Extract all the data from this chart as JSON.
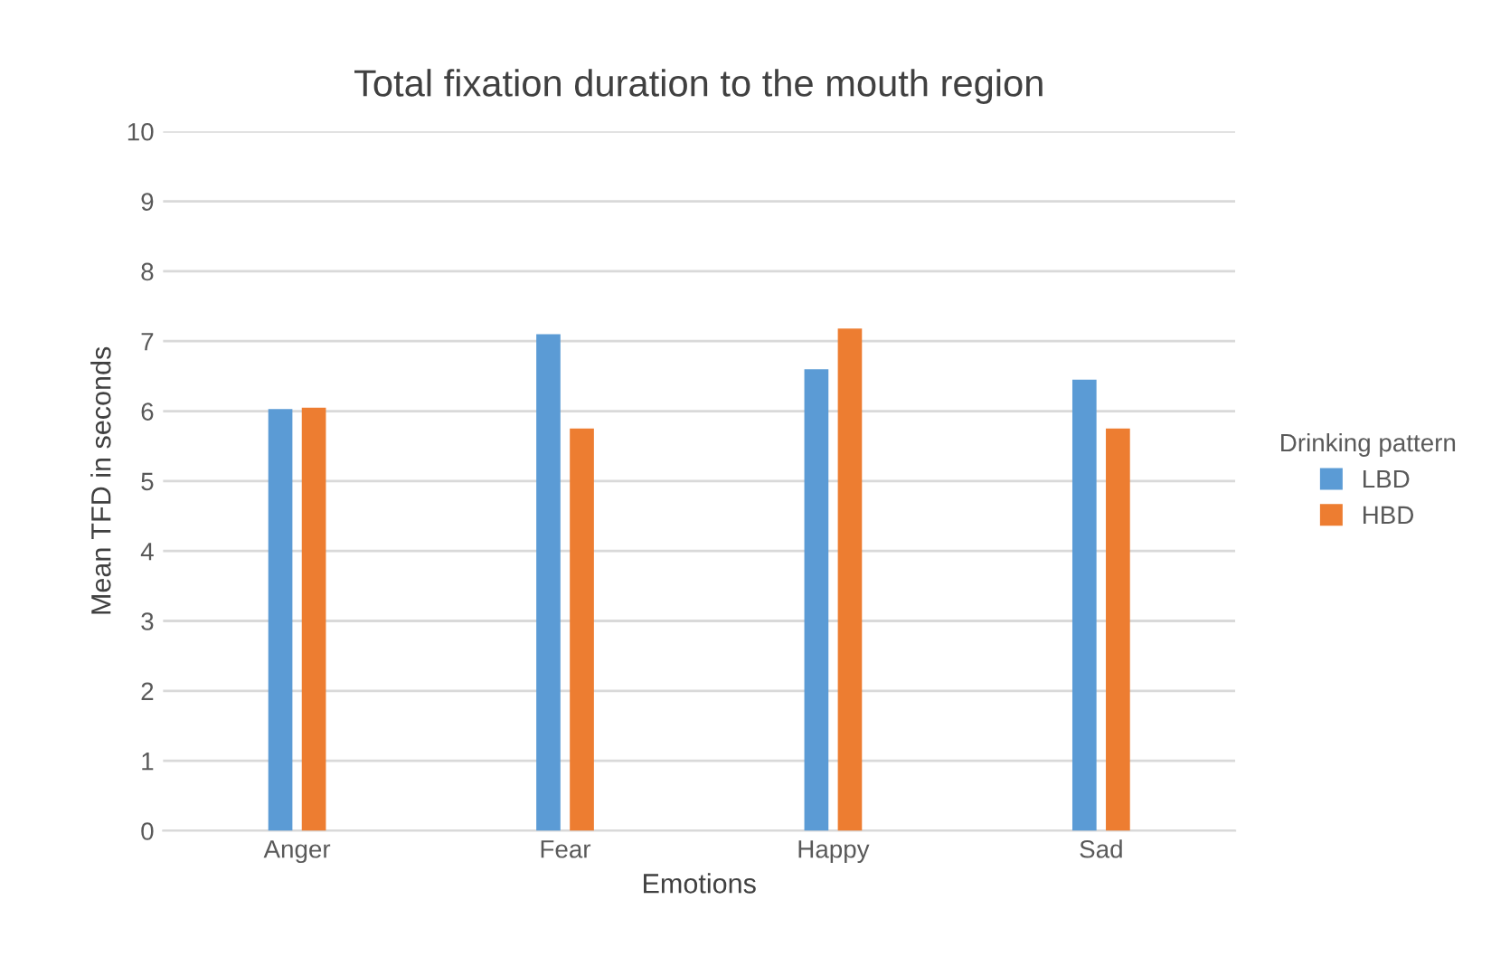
{
  "chart_data": {
    "type": "bar",
    "title": "Total fixation duration to the mouth region",
    "xlabel": "Emotions",
    "ylabel": "Mean TFD in seconds",
    "legend_title": "Drinking pattern",
    "categories": [
      "Anger",
      "Fear",
      "Happy",
      "Sad"
    ],
    "series": [
      {
        "name": "LBD",
        "color": "#5b9bd5",
        "values": [
          6.03,
          7.1,
          6.6,
          6.45
        ]
      },
      {
        "name": "HBD",
        "color": "#ed7d31",
        "values": [
          6.05,
          5.75,
          7.18,
          5.75
        ]
      }
    ],
    "ylim": [
      0,
      10
    ],
    "yticks": [
      0,
      1,
      2,
      3,
      4,
      5,
      6,
      7,
      8,
      9,
      10
    ],
    "grid": "y",
    "legend": "right"
  }
}
